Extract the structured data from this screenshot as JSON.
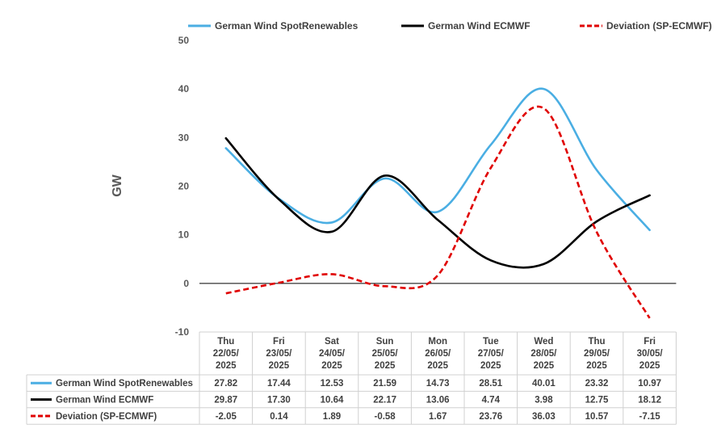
{
  "chart_data": {
    "type": "line",
    "ylabel": "GW",
    "ylim": [
      -10,
      50
    ],
    "yticks": [
      -10,
      0,
      10,
      20,
      30,
      40,
      50
    ],
    "grid": false,
    "legend_position": "top",
    "categories": [
      [
        "Thu",
        "22/05/",
        "2025"
      ],
      [
        "Fri",
        "23/05/",
        "2025"
      ],
      [
        "Sat",
        "24/05/",
        "2025"
      ],
      [
        "Sun",
        "25/05/",
        "2025"
      ],
      [
        "Mon",
        "26/05/",
        "2025"
      ],
      [
        "Tue",
        "27/05/",
        "2025"
      ],
      [
        "Wed",
        "28/05/",
        "2025"
      ],
      [
        "Thu",
        "29/05/",
        "2025"
      ],
      [
        "Fri",
        "30/05/",
        "2025"
      ]
    ],
    "series": [
      {
        "name": "German Wind SpotRenewables",
        "color": "#4aaee3",
        "dash": "solid",
        "values": [
          27.82,
          17.44,
          12.53,
          21.59,
          14.73,
          28.51,
          40.01,
          23.32,
          10.97
        ],
        "labels": [
          "27.82",
          "17.44",
          "12.53",
          "21.59",
          "14.73",
          "28.51",
          "40.01",
          "23.32",
          "10.97"
        ]
      },
      {
        "name": "German Wind ECMWF",
        "color": "#000000",
        "dash": "solid",
        "values": [
          29.87,
          17.3,
          10.64,
          22.17,
          13.06,
          4.74,
          3.98,
          12.75,
          18.12
        ],
        "labels": [
          "29.87",
          "17.30",
          "10.64",
          "22.17",
          "13.06",
          "4.74",
          "3.98",
          "12.75",
          "18.12"
        ]
      },
      {
        "name": "Deviation (SP-ECMWF)",
        "color": "#e00000",
        "dash": "dashed",
        "values": [
          -2.05,
          0.14,
          1.89,
          -0.58,
          1.67,
          23.76,
          36.03,
          10.57,
          -7.15
        ],
        "labels": [
          "-2.05",
          "0.14",
          "1.89",
          "-0.58",
          "1.67",
          "23.76",
          "36.03",
          "10.57",
          "-7.15"
        ]
      }
    ]
  }
}
